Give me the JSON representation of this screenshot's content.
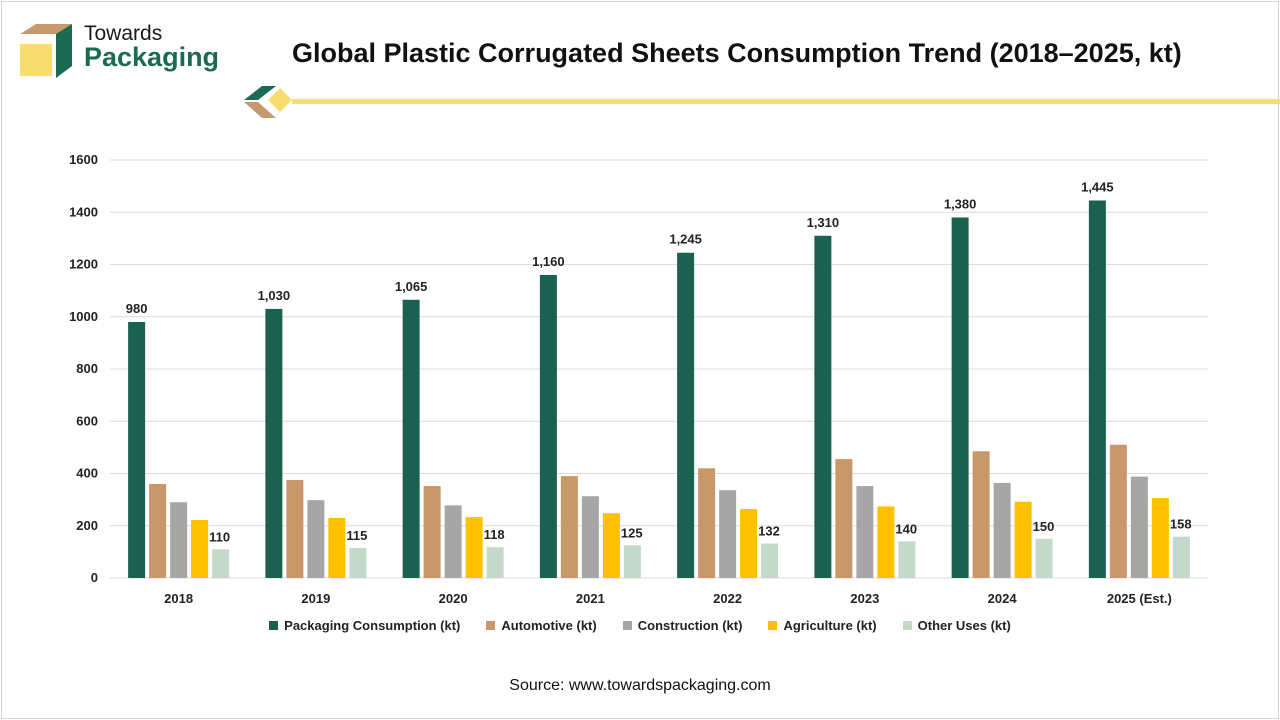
{
  "brand": {
    "line1": "Towards",
    "line2": "Packaging"
  },
  "title": "Global Plastic Corrugated Sheets Consumption Trend (2018–2025, kt)",
  "source": "Source: www.towardspackaging.com",
  "colors": {
    "packaging": "#1b6150",
    "automotive": "#c8976a",
    "construction": "#a6a6a6",
    "agriculture": "#ffc000",
    "other": "#c4d9c9",
    "brand_green": "#1b6b54",
    "brand_tan": "#c69a6e",
    "brand_yellow": "#f7dc70",
    "grid": "#dcdcdc"
  },
  "chart_data": {
    "type": "bar",
    "title": "Global Plastic Corrugated Sheets Consumption Trend (2018–2025, kt)",
    "categories": [
      "2018",
      "2019",
      "2020",
      "2021",
      "2022",
      "2023",
      "2024",
      "2025 (Est.)"
    ],
    "ylim": [
      0,
      1600
    ],
    "yticks": [
      "0",
      "200",
      "400",
      "600",
      "800",
      "1000",
      "1200",
      "1400",
      "1600"
    ],
    "grid": true,
    "legend_position": "bottom",
    "series": [
      {
        "name": "Packaging Consumption (kt)",
        "color_key": "packaging",
        "values": [
          980,
          1030,
          1065,
          1160,
          1245,
          1310,
          1380,
          1445
        ],
        "labels": [
          "980",
          "1,030",
          "1,065",
          "1,160",
          "1,245",
          "1,310",
          "1,380",
          "1,445"
        ]
      },
      {
        "name": "Automotive (kt)",
        "color_key": "automotive",
        "values": [
          360,
          375,
          352,
          390,
          420,
          455,
          485,
          510
        ]
      },
      {
        "name": "Construction (kt)",
        "color_key": "construction",
        "values": [
          290,
          298,
          278,
          313,
          336,
          352,
          364,
          388
        ]
      },
      {
        "name": "Agriculture (kt)",
        "color_key": "agriculture",
        "values": [
          222,
          230,
          233,
          248,
          264,
          274,
          292,
          306
        ]
      },
      {
        "name": "Other Uses (kt)",
        "color_key": "other",
        "values": [
          110,
          115,
          118,
          125,
          132,
          140,
          150,
          158
        ],
        "labels": [
          "110",
          "115",
          "118",
          "125",
          "132",
          "140",
          "150",
          "158"
        ]
      }
    ]
  }
}
